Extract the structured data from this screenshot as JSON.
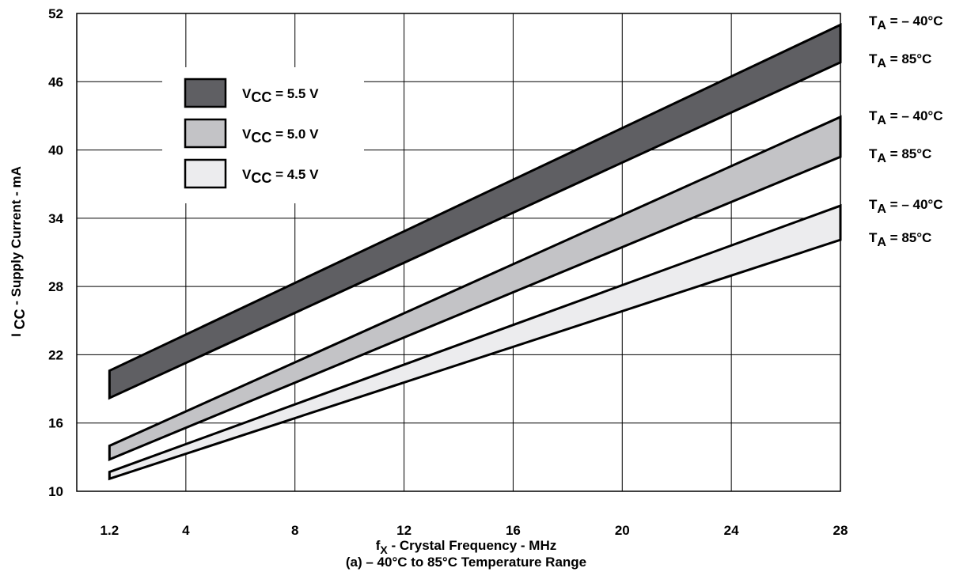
{
  "chart_data": {
    "type": "area",
    "xlabel": {
      "main": "f",
      "sub": "X",
      "rest": " - Crystal Frequency - MHz"
    },
    "subtitle": "(a) – 40°C to 85°C Temperature Range",
    "ylabel": {
      "main": "I ",
      "sub": "CC",
      "rest": " - Supply Current - mA"
    },
    "xlim": [
      0,
      28
    ],
    "ylim": [
      10,
      52
    ],
    "x_ticks": [
      1.2,
      4,
      8,
      12,
      16,
      20,
      24,
      28
    ],
    "x_tick_labels": [
      "1.2",
      "4",
      "8",
      "12",
      "16",
      "20",
      "24",
      "28"
    ],
    "y_ticks": [
      10,
      16,
      22,
      28,
      34,
      40,
      46,
      52
    ],
    "y_tick_labels": [
      "10",
      "16",
      "22",
      "28",
      "34",
      "40",
      "46",
      "52"
    ],
    "grid": true,
    "legend_placement": "top-left",
    "series": [
      {
        "name": "V_CC = 5.5 V",
        "legend_main": "V",
        "legend_sub": "CC",
        "legend_rest": " = 5.5 V",
        "color": "#5f5f63",
        "x": [
          1.2,
          28
        ],
        "upper": [
          20.6,
          51.0
        ],
        "lower": [
          18.2,
          47.7
        ],
        "upper_label": {
          "main": "T",
          "sub": "A",
          "rest": " = – 40°C"
        },
        "lower_label": {
          "main": "T",
          "sub": "A",
          "rest": " = 85°C"
        }
      },
      {
        "name": "V_CC = 5.0 V",
        "legend_main": "V",
        "legend_sub": "CC",
        "legend_rest": " = 5.0 V",
        "color": "#c3c3c6",
        "x": [
          1.2,
          28
        ],
        "upper": [
          14.0,
          42.9
        ],
        "lower": [
          12.8,
          39.4
        ],
        "upper_label": {
          "main": "T",
          "sub": "A",
          "rest": " = – 40°C"
        },
        "lower_label": {
          "main": "T",
          "sub": "A",
          "rest": " = 85°C"
        }
      },
      {
        "name": "V_CC = 4.5 V",
        "legend_main": "V",
        "legend_sub": "CC",
        "legend_rest": " = 4.5 V",
        "color": "#ececee",
        "x": [
          1.2,
          28
        ],
        "upper": [
          11.7,
          35.1
        ],
        "lower": [
          11.1,
          32.1
        ],
        "upper_label": {
          "main": "T",
          "sub": "A",
          "rest": " = – 40°C"
        },
        "lower_label": {
          "main": "T",
          "sub": "A",
          "rest": " =  85°C"
        }
      }
    ]
  }
}
